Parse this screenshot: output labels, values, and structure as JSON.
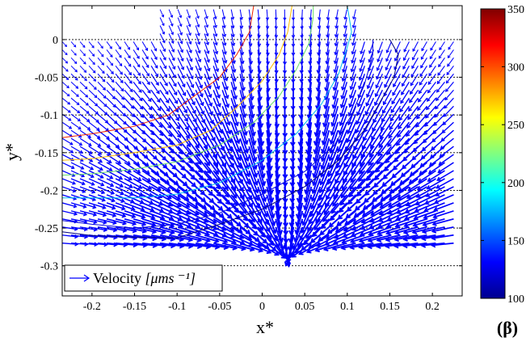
{
  "chart_data": {
    "type": "quiver",
    "xlabel": "x*",
    "ylabel": "y*",
    "xlim": [
      -0.235,
      0.235
    ],
    "ylim": [
      -0.34,
      0.045
    ],
    "xticks": [
      -0.2,
      -0.15,
      -0.1,
      -0.05,
      0,
      0.05,
      0.1,
      0.15,
      0.2
    ],
    "xtick_labels": [
      "-0.2",
      "-0.15",
      "-0.1",
      "-0.05",
      "0",
      "0.05",
      "0.1",
      "0.15",
      "0.2"
    ],
    "yticks": [
      0,
      -0.05,
      -0.1,
      -0.15,
      -0.2,
      -0.25,
      -0.3
    ],
    "ytick_labels": [
      "0",
      "-0.05",
      "-0.1",
      "-0.15",
      "-0.2",
      "-0.25",
      "-0.3"
    ],
    "dashed_gridlines_y": [
      0,
      -0.05,
      -0.1,
      -0.15,
      -0.2,
      -0.25,
      -0.3
    ],
    "legend": {
      "label": "Velocity",
      "unit": "[μms ⁻¹]",
      "position": "bottom-left"
    },
    "panel_label": "(β)",
    "colorbar": {
      "min": 100,
      "max": 350,
      "ticks": [
        100,
        150,
        200,
        250,
        300,
        350
      ],
      "tick_labels": [
        "100",
        "150",
        "200",
        "250",
        "300",
        "350"
      ],
      "colormap": "jet"
    },
    "vector_field": {
      "grid_x_range": [
        -0.235,
        0.225
      ],
      "grid_y_range": [
        -0.27,
        0.04
      ],
      "nx": 45,
      "ny": 30,
      "source": {
        "x": 0.03,
        "y": -0.29
      },
      "region_x_max_above_zero": 0.12,
      "region_x_min_above_zero": -0.12,
      "arrow_color": "#0000ff"
    },
    "contours": [
      {
        "level": 110,
        "color": "#000080",
        "points": [
          [
            -0.235,
            -0.255
          ],
          [
            -0.2,
            -0.26
          ],
          [
            -0.15,
            -0.262
          ],
          [
            -0.1,
            -0.263
          ],
          [
            -0.05,
            -0.245
          ],
          [
            0,
            -0.225
          ],
          [
            0.05,
            -0.195
          ],
          [
            0.09,
            -0.16
          ],
          [
            0.12,
            -0.12
          ],
          [
            0.14,
            -0.08
          ],
          [
            0.155,
            -0.05
          ],
          [
            0.16,
            -0.02
          ],
          [
            0.15,
            0.0
          ]
        ]
      },
      {
        "level": 130,
        "color": "#0000dd",
        "points": [
          [
            -0.235,
            -0.24
          ],
          [
            -0.2,
            -0.245
          ],
          [
            -0.15,
            -0.25
          ],
          [
            -0.1,
            -0.245
          ],
          [
            -0.05,
            -0.23
          ],
          [
            0,
            -0.205
          ],
          [
            0.05,
            -0.175
          ],
          [
            0.085,
            -0.14
          ],
          [
            0.105,
            -0.1
          ],
          [
            0.12,
            -0.06
          ],
          [
            0.13,
            -0.02
          ],
          [
            0.13,
            0.0
          ]
        ]
      },
      {
        "level": 170,
        "color": "#00bbee",
        "points": [
          [
            -0.235,
            -0.21
          ],
          [
            -0.2,
            -0.21
          ],
          [
            -0.15,
            -0.21
          ],
          [
            -0.1,
            -0.205
          ],
          [
            -0.05,
            -0.19
          ],
          [
            0,
            -0.16
          ],
          [
            0.04,
            -0.125
          ],
          [
            0.07,
            -0.085
          ],
          [
            0.09,
            -0.045
          ],
          [
            0.1,
            -0.01
          ],
          [
            0.105,
            0.01
          ],
          [
            0.1,
            0.045
          ]
        ]
      },
      {
        "level": 220,
        "color": "#66dd66",
        "points": [
          [
            -0.235,
            -0.18
          ],
          [
            -0.2,
            -0.178
          ],
          [
            -0.15,
            -0.172
          ],
          [
            -0.1,
            -0.162
          ],
          [
            -0.05,
            -0.14
          ],
          [
            -0.01,
            -0.11
          ],
          [
            0.02,
            -0.075
          ],
          [
            0.04,
            -0.04
          ],
          [
            0.055,
            -0.005
          ],
          [
            0.06,
            0.03
          ],
          [
            0.06,
            0.045
          ]
        ]
      },
      {
        "level": 260,
        "color": "#ffbb00",
        "points": [
          [
            -0.235,
            -0.16
          ],
          [
            -0.2,
            -0.158
          ],
          [
            -0.15,
            -0.15
          ],
          [
            -0.1,
            -0.14
          ],
          [
            -0.06,
            -0.12
          ],
          [
            -0.03,
            -0.09
          ],
          [
            0,
            -0.055
          ],
          [
            0.02,
            -0.02
          ],
          [
            0.03,
            0.01
          ],
          [
            0.035,
            0.045
          ]
        ]
      },
      {
        "level": 320,
        "color": "#ee2200",
        "points": [
          [
            -0.235,
            -0.13
          ],
          [
            -0.2,
            -0.125
          ],
          [
            -0.15,
            -0.115
          ],
          [
            -0.11,
            -0.1
          ],
          [
            -0.08,
            -0.075
          ],
          [
            -0.05,
            -0.05
          ],
          [
            -0.03,
            -0.02
          ],
          [
            -0.015,
            0.01
          ],
          [
            -0.01,
            0.045
          ]
        ]
      }
    ]
  }
}
